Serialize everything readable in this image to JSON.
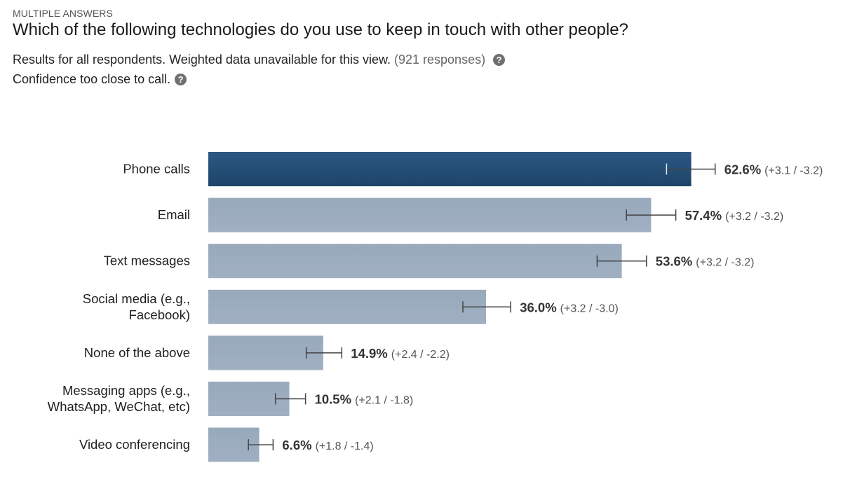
{
  "header": {
    "kicker": "MULTIPLE ANSWERS",
    "question": "Which of the following technologies do you use to keep in touch with other people?",
    "results_text": "Results for all respondents. Weighted data unavailable for this view.",
    "responses_text": "(921 responses)",
    "confidence_text": "Confidence too close to call."
  },
  "colors": {
    "highlight_bar": "#1e4468",
    "bar": "#a0b0c2",
    "error_bar": "#444444"
  },
  "chart_data": {
    "type": "bar",
    "orientation": "horizontal",
    "categories": [
      [
        "Phone calls"
      ],
      [
        "Email"
      ],
      [
        "Text messages"
      ],
      [
        "Social media (e.g.,",
        "Facebook)"
      ],
      [
        "None of the above"
      ],
      [
        "Messaging apps (e.g.,",
        "WhatsApp, WeChat, etc)"
      ],
      [
        "Video conferencing"
      ]
    ],
    "values": [
      62.6,
      57.4,
      53.6,
      36.0,
      14.9,
      10.5,
      6.6
    ],
    "value_labels": [
      "62.6%",
      "57.4%",
      "53.6%",
      "36.0%",
      "14.9%",
      "10.5%",
      "6.6%"
    ],
    "ci_labels": [
      "(+3.1 / -3.2)",
      "(+3.2 / -3.2)",
      "(+3.2 / -3.2)",
      "(+3.2 / -3.0)",
      "(+2.4 / -2.2)",
      "(+2.1 / -1.8)",
      "(+1.8 / -1.4)"
    ],
    "ci_plus": [
      3.1,
      3.2,
      3.2,
      3.2,
      2.4,
      2.1,
      1.8
    ],
    "ci_minus": [
      3.2,
      3.2,
      3.2,
      3.0,
      2.2,
      1.8,
      1.4
    ],
    "highlight_index": 0,
    "xlim": [
      0,
      100
    ],
    "grid": false
  }
}
